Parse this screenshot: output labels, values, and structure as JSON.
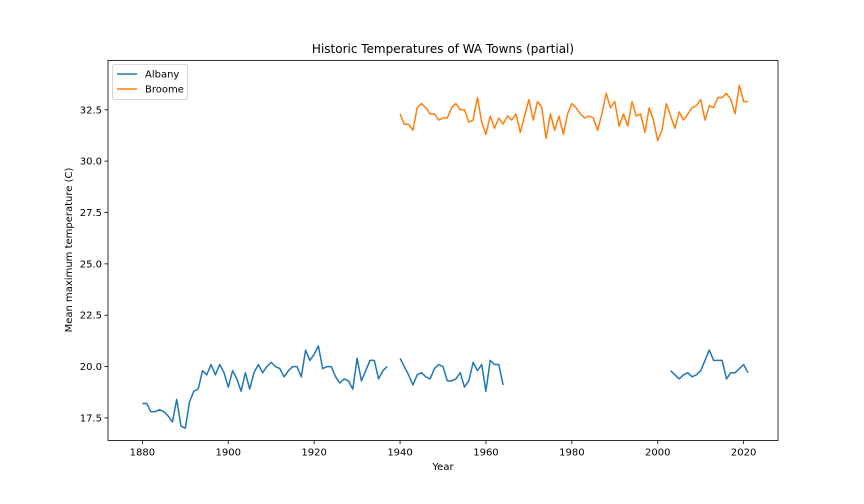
{
  "chart_data": {
    "type": "line",
    "title": "Historic Temperatures of WA Towns (partial)",
    "xlabel": "Year",
    "ylabel": "Mean maximum temperature (C)",
    "xlim": [
      1872,
      2028
    ],
    "ylim": [
      16.4,
      34.9
    ],
    "xticks": [
      "1880",
      "1900",
      "1920",
      "1940",
      "1960",
      "1980",
      "2000",
      "2020"
    ],
    "yticks": [
      "17.5",
      "20.0",
      "22.5",
      "25.0",
      "27.5",
      "30.0",
      "32.5"
    ],
    "grid": false,
    "legend_position": "top-left",
    "colors": {
      "Albany": "#1f77b4",
      "Broome": "#ff7f0e"
    },
    "series": [
      {
        "name": "Albany",
        "segments": [
          {
            "x": [
              1880,
              1881,
              1882,
              1883,
              1884,
              1885,
              1886,
              1887,
              1888,
              1889,
              1890,
              1891,
              1892,
              1893,
              1894,
              1895,
              1896,
              1897,
              1898,
              1899,
              1900,
              1901,
              1902,
              1903,
              1904,
              1905,
              1906,
              1907,
              1908,
              1909,
              1910,
              1911,
              1912,
              1913,
              1914,
              1915,
              1916,
              1917,
              1918,
              1919,
              1920,
              1921,
              1922,
              1923,
              1924,
              1925,
              1926,
              1927,
              1928,
              1929,
              1930,
              1931,
              1932,
              1933,
              1934,
              1935,
              1936,
              1937
            ],
            "y": [
              18.2,
              18.2,
              17.8,
              17.8,
              17.9,
              17.8,
              17.6,
              17.3,
              18.4,
              17.1,
              17.0,
              18.3,
              18.8,
              18.9,
              19.8,
              19.6,
              20.1,
              19.6,
              20.1,
              19.7,
              19.0,
              19.8,
              19.4,
              18.8,
              19.7,
              18.9,
              19.7,
              20.1,
              19.7,
              20.0,
              20.2,
              20.0,
              19.9,
              19.5,
              19.8,
              20.0,
              20.0,
              19.5,
              20.8,
              20.3,
              20.6,
              21.0,
              19.9,
              20.0,
              20.0,
              19.5,
              19.2,
              19.4,
              19.3,
              18.9,
              20.4,
              19.3,
              19.8,
              20.3,
              20.3,
              19.4,
              19.8,
              20.0
            ]
          },
          {
            "x": [
              1940,
              1941,
              1942,
              1943,
              1944,
              1945,
              1946,
              1947,
              1948,
              1949,
              1950,
              1951,
              1952,
              1953,
              1954,
              1955,
              1956,
              1957,
              1958,
              1959,
              1960,
              1961,
              1962,
              1963,
              1964
            ],
            "y": [
              20.4,
              20.0,
              19.6,
              19.1,
              19.6,
              19.7,
              19.5,
              19.4,
              19.9,
              20.1,
              20.0,
              19.3,
              19.3,
              19.4,
              19.7,
              19.0,
              19.3,
              20.2,
              19.8,
              20.1,
              18.8,
              20.3,
              20.1,
              20.1,
              19.1
            ]
          },
          {
            "x": [
              2003,
              2004,
              2005,
              2006,
              2007,
              2008,
              2009,
              2010,
              2011,
              2012,
              2013,
              2014,
              2015,
              2016,
              2017,
              2018,
              2019,
              2020,
              2021
            ],
            "y": [
              19.8,
              19.6,
              19.4,
              19.6,
              19.7,
              19.5,
              19.6,
              19.8,
              20.3,
              20.8,
              20.3,
              20.3,
              20.3,
              19.4,
              19.7,
              19.7,
              19.9,
              20.1,
              19.7
            ]
          }
        ]
      },
      {
        "name": "Broome",
        "segments": [
          {
            "x": [
              1940,
              1941,
              1942,
              1943,
              1944,
              1945,
              1946,
              1947,
              1948,
              1949,
              1950,
              1951,
              1952,
              1953,
              1954,
              1955,
              1956,
              1957,
              1958,
              1959,
              1960,
              1961,
              1962,
              1963,
              1964,
              1965,
              1966,
              1967,
              1968,
              1969,
              1970,
              1971,
              1972,
              1973,
              1974,
              1975,
              1976,
              1977,
              1978,
              1979,
              1980,
              1981,
              1982,
              1983,
              1984,
              1985,
              1986,
              1987,
              1988,
              1989,
              1990,
              1991,
              1992,
              1993,
              1994,
              1995,
              1996,
              1997,
              1998,
              1999,
              2000,
              2001,
              2002,
              2003,
              2004,
              2005,
              2006,
              2007,
              2008,
              2009,
              2010,
              2011,
              2012,
              2013,
              2014,
              2015,
              2016,
              2017,
              2018,
              2019,
              2020,
              2021
            ],
            "y": [
              32.3,
              31.8,
              31.8,
              31.5,
              32.6,
              32.8,
              32.6,
              32.3,
              32.3,
              32.0,
              32.1,
              32.1,
              32.6,
              32.8,
              32.5,
              32.5,
              31.9,
              32.0,
              33.1,
              31.9,
              31.3,
              32.2,
              31.6,
              32.1,
              31.8,
              32.2,
              32.0,
              32.3,
              31.4,
              32.2,
              33.0,
              32.0,
              32.9,
              32.6,
              31.1,
              32.3,
              31.5,
              32.2,
              31.3,
              32.3,
              32.8,
              32.6,
              32.3,
              32.1,
              32.2,
              32.1,
              31.5,
              32.3,
              33.3,
              32.6,
              32.9,
              31.7,
              32.3,
              31.7,
              32.9,
              32.2,
              32.3,
              31.4,
              32.6,
              32.0,
              31.0,
              31.5,
              32.8,
              32.2,
              31.6,
              32.4,
              32.0,
              32.3,
              32.6,
              32.7,
              33.0,
              32.0,
              32.7,
              32.6,
              33.1,
              33.1,
              33.3,
              33.0,
              32.3,
              33.7,
              32.9,
              32.9
            ]
          }
        ]
      }
    ]
  }
}
